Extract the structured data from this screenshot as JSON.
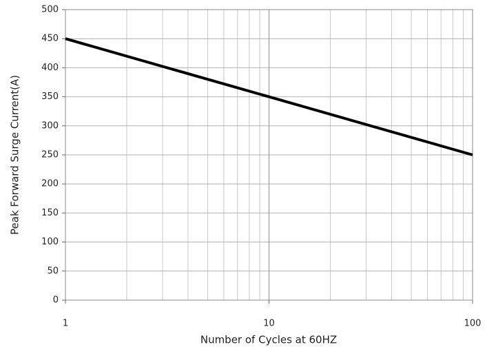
{
  "chart_data": {
    "type": "line",
    "xlabel": "Number of Cycles at 60HZ",
    "ylabel": "Peak Forward Surge Current(A)",
    "x": [
      1,
      10,
      100
    ],
    "series": [
      {
        "name": "Peak Forward Surge Current",
        "color": "#000000",
        "values": [
          450,
          350,
          250
        ]
      }
    ],
    "xlim": [
      1,
      100
    ],
    "xticks": [
      1,
      10,
      100
    ],
    "xscale": "log",
    "ylim": [
      0,
      500
    ],
    "yticks": [
      0,
      50,
      100,
      150,
      200,
      250,
      300,
      350,
      400,
      450,
      500
    ],
    "grid": true,
    "legend": false
  }
}
